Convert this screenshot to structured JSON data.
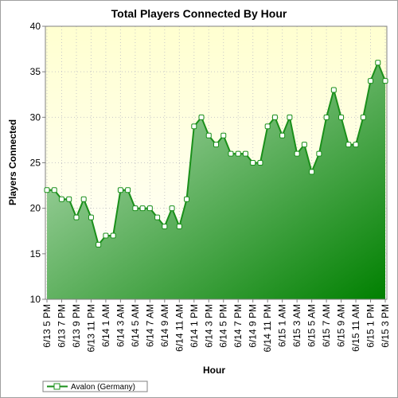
{
  "chart_data": {
    "type": "area",
    "title": "Total Players Connected By Hour",
    "xlabel": "Hour",
    "ylabel": "Players Connected",
    "ylim": [
      10,
      40
    ],
    "yticks": [
      10,
      15,
      20,
      25,
      30,
      35,
      40
    ],
    "xtick_labels": [
      "6/13 5 PM",
      "6/13 7 PM",
      "6/13 9 PM",
      "6/13 11 PM",
      "6/14 1 AM",
      "6/14 3 AM",
      "6/14 5 AM",
      "6/14 7 AM",
      "6/14 9 AM",
      "6/14 11 AM",
      "6/14 1 PM",
      "6/14 3 PM",
      "6/14 5 PM",
      "6/14 7 PM",
      "6/14 9 PM",
      "6/14 11 PM",
      "6/15 1 AM",
      "6/15 3 AM",
      "6/15 5 AM",
      "6/15 7 AM",
      "6/15 9 AM",
      "6/15 11 AM",
      "6/15 1 PM",
      "6/15 3 PM"
    ],
    "grid": true,
    "legend_position": "bottom-left",
    "series": [
      {
        "name": "Avalon (Germany)",
        "color": "#1a8f1a",
        "values": [
          22,
          22,
          21,
          21,
          19,
          21,
          19,
          16,
          17,
          17,
          22,
          22,
          20,
          20,
          20,
          19,
          18,
          20,
          18,
          21,
          29,
          30,
          28,
          27,
          28,
          26,
          26,
          26,
          25,
          25,
          29,
          30,
          28,
          30,
          26,
          27,
          24,
          26,
          30,
          33,
          30,
          27,
          27,
          30,
          34,
          36,
          34
        ]
      }
    ]
  },
  "colors": {
    "plot_background_top": "#ffffd0",
    "plot_background_bottom": "#ffffff",
    "area_light": "#c4e4c4",
    "area_dark": "#008000",
    "line": "#1a8f1a"
  }
}
